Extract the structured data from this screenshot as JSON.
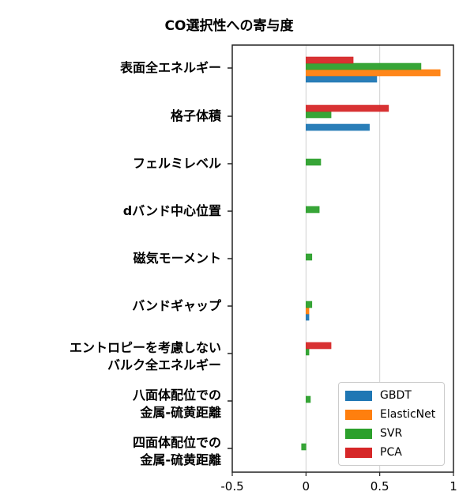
{
  "chart_data": {
    "type": "bar",
    "orientation": "horizontal",
    "title": "CO選択性への寄与度",
    "xlabel": "",
    "ylabel": "",
    "xlim": [
      -0.5,
      1.0
    ],
    "xticks": [
      "-0.5",
      "0",
      "0.5",
      "1"
    ],
    "grid": "vertical lines at 0 and 0.5",
    "legend_position": "lower right",
    "categories": [
      "表面全エネルギー",
      "格子体積",
      "フェルミレベル",
      "dバンド中心位置",
      "磁気モーメント",
      "バンドギャップ",
      "エントロピーを考慮しない\nバルク全エネルギー",
      "八面体配位での\n金属-硫黄距離",
      "四面体配位での\n金属-硫黄距離"
    ],
    "series": [
      {
        "name": "GBDT",
        "color": "#1f77b4",
        "values": [
          0.48,
          0.43,
          0,
          0,
          0,
          0.02,
          0,
          0,
          0
        ]
      },
      {
        "name": "ElasticNet",
        "color": "#ff7f0e",
        "values": [
          0.91,
          0,
          0,
          0,
          0,
          0.02,
          0,
          0,
          0
        ]
      },
      {
        "name": "SVR",
        "color": "#2ca02c",
        "values": [
          0.78,
          0.17,
          0.1,
          0.09,
          0.04,
          0.04,
          0.02,
          0.03,
          -0.03
        ]
      },
      {
        "name": "PCA",
        "color": "#d62728",
        "values": [
          0.32,
          0.56,
          0,
          0,
          0,
          0,
          0.17,
          0,
          0
        ]
      }
    ]
  },
  "labels": {
    "title": "CO選択性への寄与度",
    "y": [
      [
        "表面全エネルギー"
      ],
      [
        "格子体積"
      ],
      [
        "フェルミレベル"
      ],
      [
        "dバンド中心位置"
      ],
      [
        "磁気モーメント"
      ],
      [
        "バンドギャップ"
      ],
      [
        "エントロピーを考慮しない",
        "バルク全エネルギー"
      ],
      [
        "八面体配位での",
        "金属-硫黄距離"
      ],
      [
        "四面体配位での",
        "金属-硫黄距離"
      ]
    ],
    "x": [
      "-0.5",
      "0",
      "0.5",
      "1"
    ],
    "legend": [
      "GBDT",
      "ElasticNet",
      "SVR",
      "PCA"
    ]
  }
}
